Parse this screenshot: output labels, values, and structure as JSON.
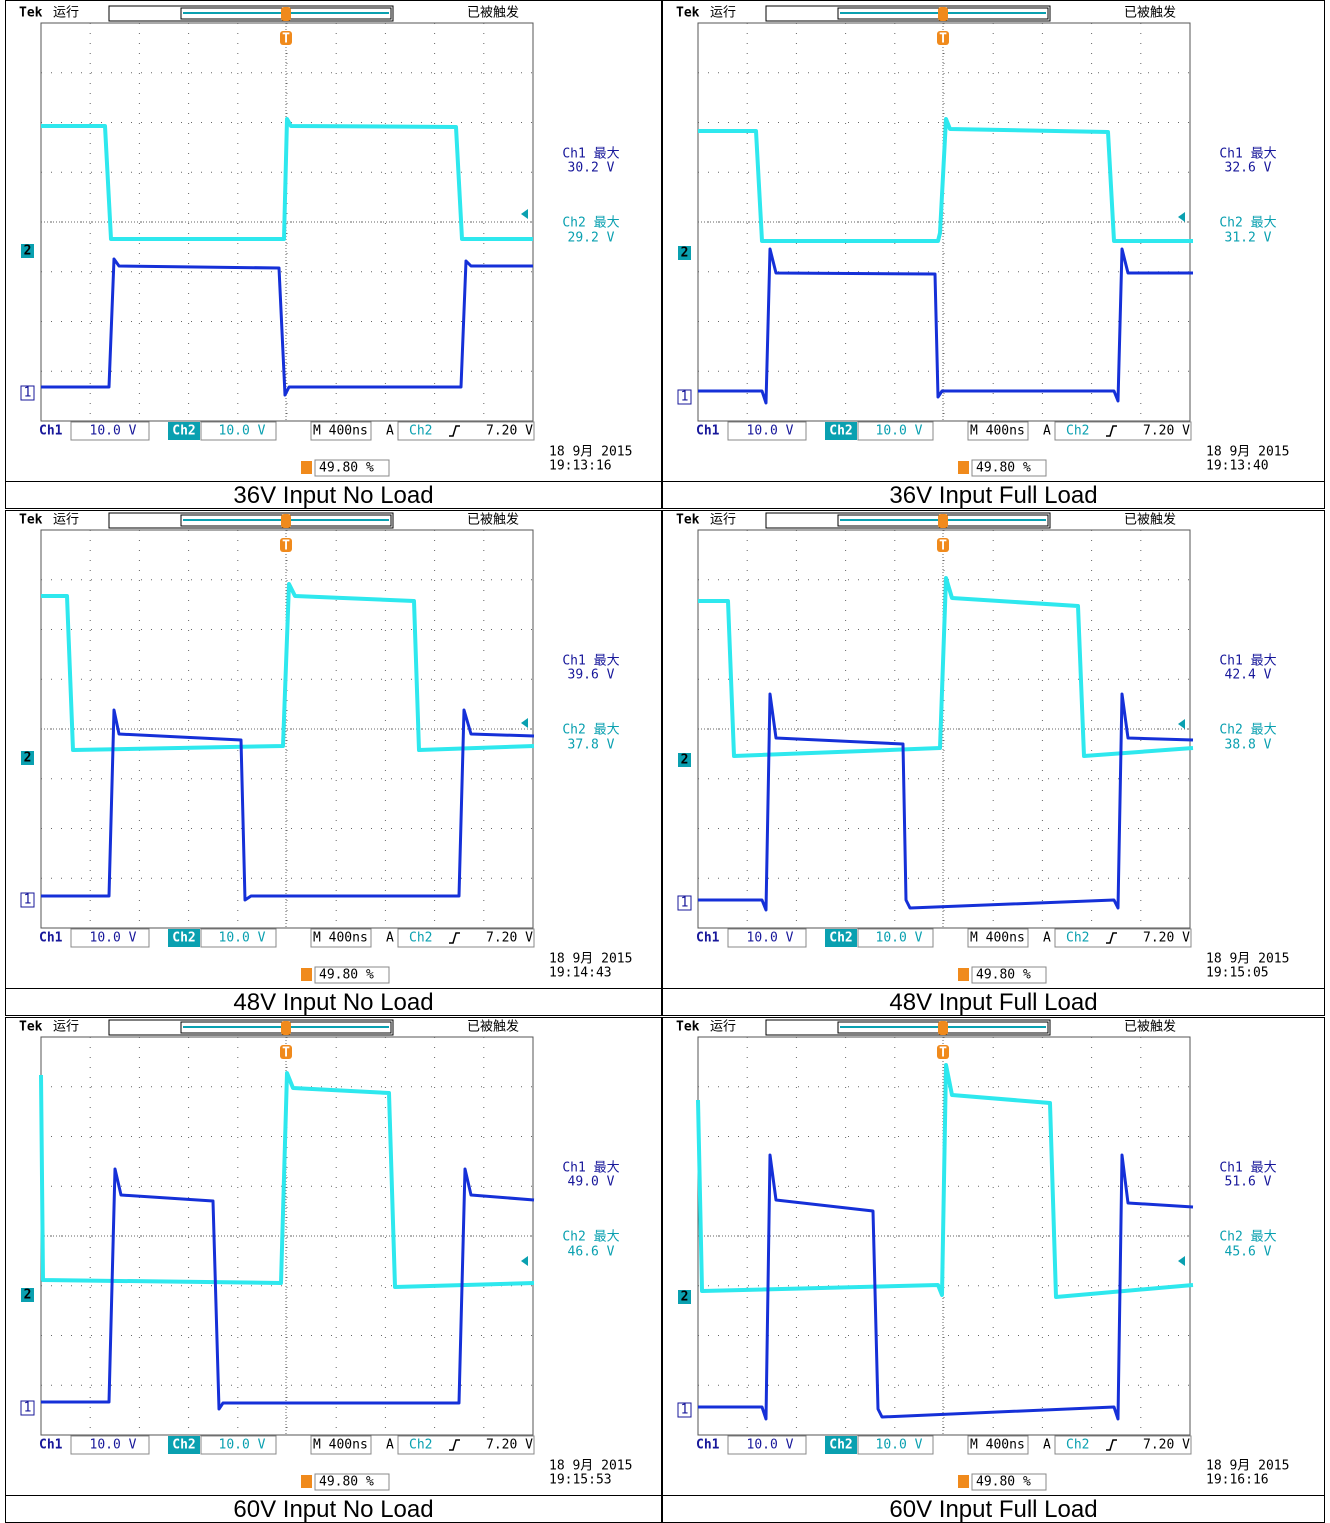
{
  "common": {
    "brand": "Tek",
    "status": "运行",
    "trigger_state": "已被触发",
    "trigger_marker": "T",
    "ch1_marker": "1",
    "ch2_marker": "2",
    "ch1": "Ch1",
    "ch2": "Ch2",
    "scale": "10.0 V",
    "timebase": "M 400ns",
    "trigger_mode": "A",
    "trigger_level": "7.20 V",
    "ch1_max": "Ch1 最大",
    "ch2_max": "Ch2 最大",
    "trigger_position": "49.80 %",
    "date": "18 9月  2015"
  },
  "panels": [
    {
      "ch1_max_value": "30.2 V",
      "ch2_max_value": "29.2 V",
      "time": "19:13:16",
      "caption": "36V Input No Load"
    },
    {
      "ch1_max_value": "32.6 V",
      "ch2_max_value": "31.2 V",
      "time": "19:13:40",
      "caption": "36V Input Full Load"
    },
    {
      "ch1_max_value": "39.6 V",
      "ch2_max_value": "37.8 V",
      "time": "19:14:43",
      "caption": "48V Input No Load"
    },
    {
      "ch1_max_value": "42.4 V",
      "ch2_max_value": "38.8 V",
      "time": "19:15:05",
      "caption": "48V Input Full Load"
    },
    {
      "ch1_max_value": "49.0 V",
      "ch2_max_value": "46.6 V",
      "time": "19:15:53",
      "caption": "60V Input No Load"
    },
    {
      "ch1_max_value": "51.6 V",
      "ch2_max_value": "45.6 V",
      "time": "19:16:16",
      "caption": "60V Input Full Load"
    }
  ]
}
